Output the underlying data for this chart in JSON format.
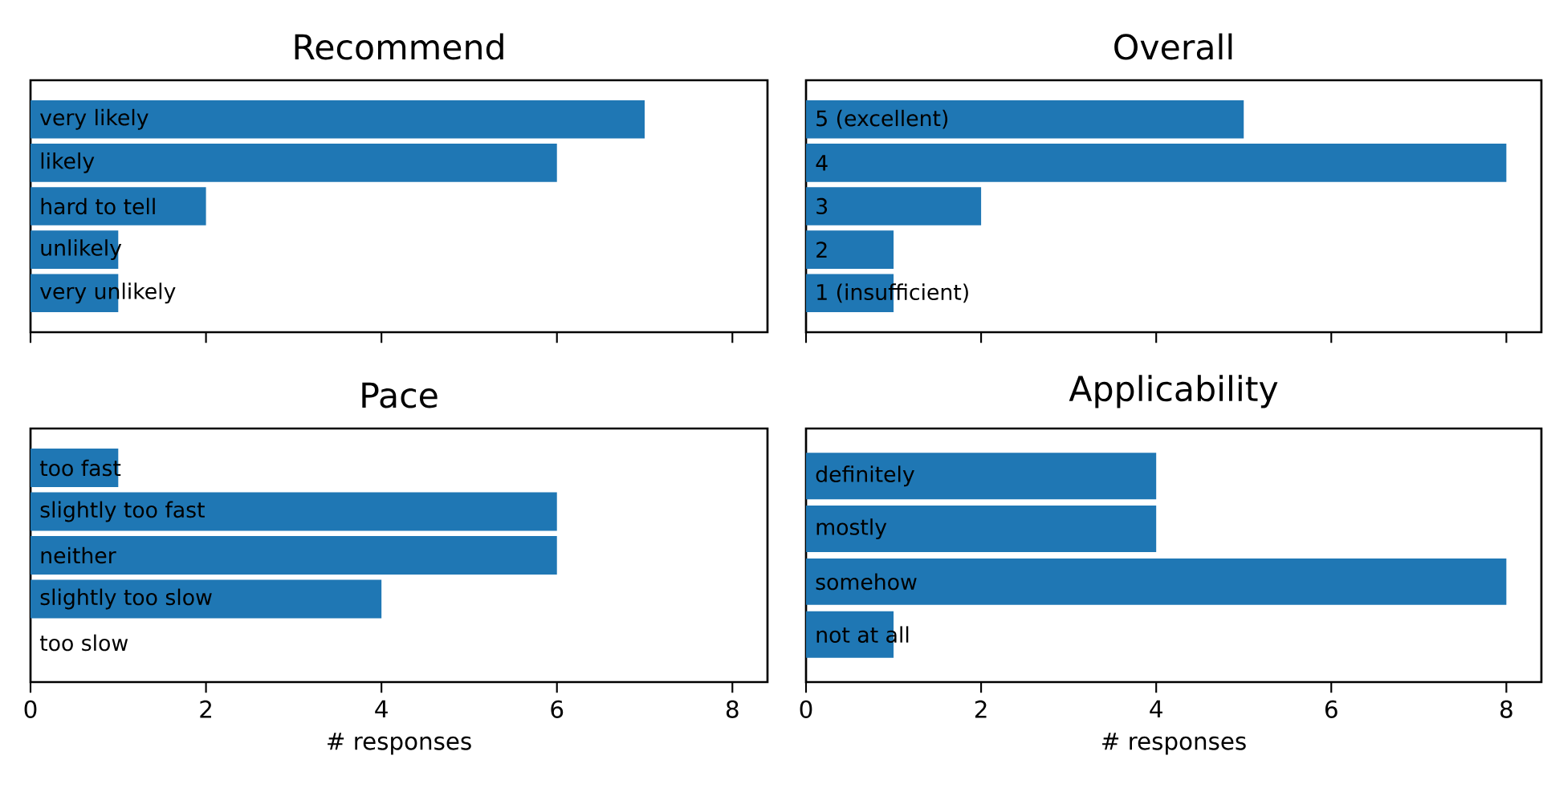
{
  "chart_data": [
    {
      "type": "bar",
      "orientation": "horizontal",
      "title": "Recommend",
      "categories": [
        "very likely",
        "likely",
        "hard to tell",
        "unlikely",
        "very unlikely"
      ],
      "values": [
        7,
        6,
        2,
        1,
        1
      ],
      "color": "#1f77b4",
      "xlim": [
        0,
        8.4
      ],
      "xticks": [
        0,
        2,
        4,
        6,
        8
      ],
      "tick_labels": false
    },
    {
      "type": "bar",
      "orientation": "horizontal",
      "title": "Overall",
      "categories": [
        "5 (excellent)",
        "4",
        "3",
        "2",
        "1 (insufficient)"
      ],
      "values": [
        5,
        8,
        2,
        1,
        1
      ],
      "color": "#1f77b4",
      "xlim": [
        0,
        8.4
      ],
      "xticks": [
        0,
        2,
        4,
        6,
        8
      ],
      "tick_labels": false
    },
    {
      "type": "bar",
      "orientation": "horizontal",
      "title": "Pace",
      "categories": [
        "too fast",
        "slightly too fast",
        "neither",
        "slightly too slow",
        "too slow"
      ],
      "values": [
        1,
        6,
        6,
        4,
        0
      ],
      "color": "#1f77b4",
      "xlim": [
        0,
        8.4
      ],
      "xticks": [
        0,
        2,
        4,
        6,
        8
      ],
      "tick_labels": "x",
      "xlabel": "# responses"
    },
    {
      "type": "bar",
      "orientation": "horizontal",
      "title": "Applicability",
      "categories": [
        "definitely",
        "mostly",
        "somehow",
        "not at all"
      ],
      "values": [
        4,
        4,
        8,
        1
      ],
      "color": "#1f77b4",
      "xlim": [
        0,
        8.4
      ],
      "xticks": [
        0,
        2,
        4,
        6,
        8
      ],
      "tick_labels": "x",
      "xlabel": "# responses"
    }
  ]
}
